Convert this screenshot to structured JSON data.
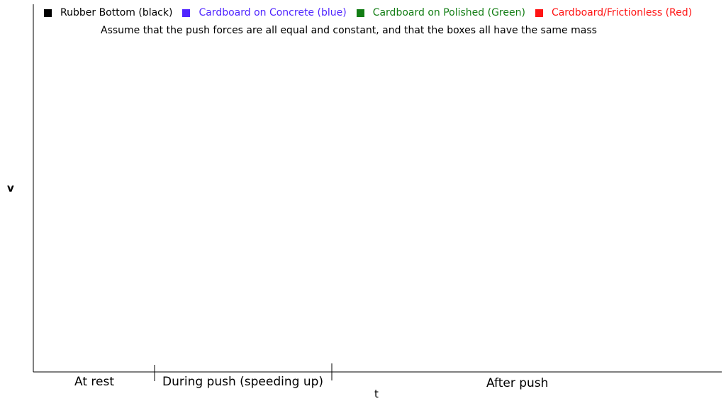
{
  "chart_data": {
    "type": "line",
    "xlabel": "t",
    "ylabel": "v",
    "series": [],
    "legend": [
      {
        "name": "Rubber Bottom (black)",
        "color": "#000000"
      },
      {
        "name": "Cardboard on Concrete (blue)",
        "color": "#4f24ff"
      },
      {
        "name": "Cardboard on Polished (Green)",
        "color": "#127d14"
      },
      {
        "name": "Cardboard/Frictionless (Red)",
        "color": "#ff1414"
      }
    ],
    "legend_placement": "top",
    "note": "Assume that the push forces are all equal and constant, and that the boxes all have the same mass",
    "phase_labels": [
      "At rest",
      "During push (speeding up)",
      "After push"
    ],
    "grid": false
  }
}
